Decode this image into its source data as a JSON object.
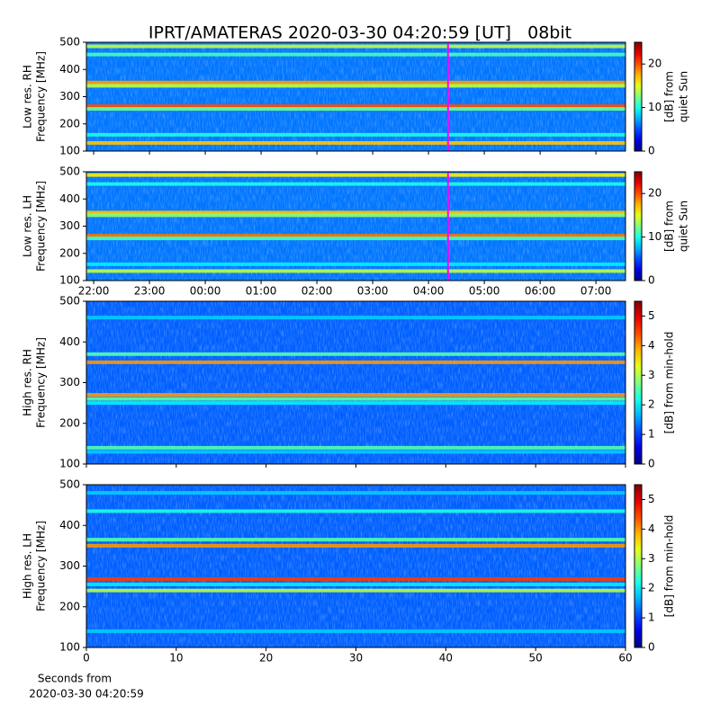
{
  "title": "IPRT/AMATERAS 2020-03-30 04:20:59 [UT]   08bit",
  "chart_data": [
    {
      "type": "heatmap",
      "ylabel": [
        "Low res. RH",
        "Frequency [MHz]"
      ],
      "ylim": [
        100,
        500
      ],
      "yticks": [
        100,
        200,
        300,
        400,
        500
      ],
      "xlim": [
        21.87,
        31.53
      ],
      "marker": 28.35,
      "marker_color": "#ff00ff",
      "clim": [
        0,
        25
      ],
      "cticks": [
        0,
        10,
        20
      ],
      "clabel": [
        "[dB] from",
        "quiet Sun"
      ],
      "background_level": 6,
      "bands": [
        {
          "freq": 485,
          "level": 14
        },
        {
          "freq": 455,
          "level": 11
        },
        {
          "freq": 352,
          "level": 18
        },
        {
          "freq": 340,
          "level": 14
        },
        {
          "freq": 265,
          "level": 20
        },
        {
          "freq": 255,
          "level": 12
        },
        {
          "freq": 160,
          "level": 10
        },
        {
          "freq": 130,
          "level": 17
        }
      ]
    },
    {
      "type": "heatmap",
      "ylabel": [
        "Low res. LH",
        "Frequency [MHz]"
      ],
      "ylim": [
        100,
        500
      ],
      "yticks": [
        100,
        200,
        300,
        400,
        500
      ],
      "xlim": [
        21.87,
        31.53
      ],
      "marker": 28.35,
      "marker_color": "#ff00ff",
      "xticks": [
        {
          "value": 22,
          "label": "22:00"
        },
        {
          "value": 23,
          "label": "23:00"
        },
        {
          "value": 24,
          "label": "00:00"
        },
        {
          "value": 25,
          "label": "01:00"
        },
        {
          "value": 26,
          "label": "02:00"
        },
        {
          "value": 27,
          "label": "03:00"
        },
        {
          "value": 28,
          "label": "04:00"
        },
        {
          "value": 29,
          "label": "05:00"
        },
        {
          "value": 30,
          "label": "06:00"
        },
        {
          "value": 31,
          "label": "07:00"
        }
      ],
      "clim": [
        0,
        25
      ],
      "cticks": [
        0,
        10,
        20
      ],
      "clabel": [
        "[dB] from",
        "quiet Sun"
      ],
      "background_level": 6,
      "bands": [
        {
          "freq": 488,
          "level": 16
        },
        {
          "freq": 455,
          "level": 10
        },
        {
          "freq": 350,
          "level": 17
        },
        {
          "freq": 340,
          "level": 13
        },
        {
          "freq": 265,
          "level": 19
        },
        {
          "freq": 255,
          "level": 11
        },
        {
          "freq": 160,
          "level": 9
        },
        {
          "freq": 135,
          "level": 14
        }
      ]
    },
    {
      "type": "heatmap",
      "ylabel": [
        "High res. RH",
        "Frequency [MHz]"
      ],
      "ylim": [
        100,
        500
      ],
      "yticks": [
        100,
        200,
        300,
        400,
        500
      ],
      "xlim": [
        0,
        60
      ],
      "clim": [
        0,
        5.5
      ],
      "cticks": [
        0,
        1,
        2,
        3,
        4,
        5
      ],
      "clabel": [
        "[dB] from min-hold"
      ],
      "background_level": 1.2,
      "bands": [
        {
          "freq": 460,
          "level": 1.8
        },
        {
          "freq": 370,
          "level": 2.5
        },
        {
          "freq": 350,
          "level": 4
        },
        {
          "freq": 270,
          "level": 4
        },
        {
          "freq": 260,
          "level": 2.5
        },
        {
          "freq": 250,
          "level": 2
        },
        {
          "freq": 140,
          "level": 2.5
        },
        {
          "freq": 130,
          "level": 1.8
        }
      ]
    },
    {
      "type": "heatmap",
      "ylabel": [
        "High res. LH",
        "Frequency [MHz]"
      ],
      "ylim": [
        100,
        500
      ],
      "yticks": [
        100,
        200,
        300,
        400,
        500
      ],
      "xlim": [
        0,
        60
      ],
      "xticks": [
        0,
        10,
        20,
        30,
        40,
        50,
        60
      ],
      "xlabel": [
        "Seconds from",
        "2020-03-30 04:20:59"
      ],
      "clim": [
        0,
        5.5
      ],
      "cticks": [
        0,
        1,
        2,
        3,
        4,
        5
      ],
      "clabel": [
        "[dB] from min-hold"
      ],
      "background_level": 1.2,
      "bands": [
        {
          "freq": 480,
          "level": 1.8
        },
        {
          "freq": 435,
          "level": 2.2
        },
        {
          "freq": 365,
          "level": 2.5
        },
        {
          "freq": 350,
          "level": 4
        },
        {
          "freq": 268,
          "level": 4.5
        },
        {
          "freq": 255,
          "level": 2
        },
        {
          "freq": 240,
          "level": 3
        },
        {
          "freq": 140,
          "level": 1.8
        }
      ]
    }
  ]
}
